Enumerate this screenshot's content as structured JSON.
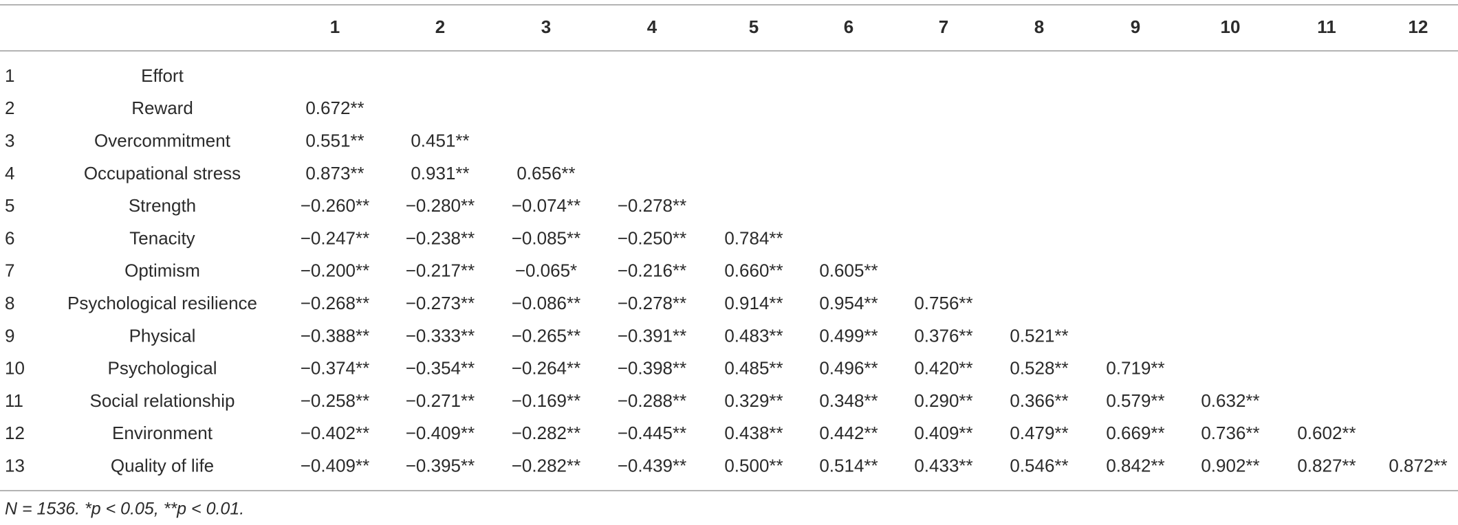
{
  "table": {
    "columns": [
      "1",
      "2",
      "3",
      "4",
      "5",
      "6",
      "7",
      "8",
      "9",
      "10",
      "11",
      "12"
    ],
    "rows": [
      {
        "index": "1",
        "label": "Effort",
        "cells": []
      },
      {
        "index": "2",
        "label": "Reward",
        "cells": [
          "0.672**"
        ]
      },
      {
        "index": "3",
        "label": "Overcommitment",
        "cells": [
          "0.551**",
          "0.451**"
        ]
      },
      {
        "index": "4",
        "label": "Occupational stress",
        "cells": [
          "0.873**",
          "0.931**",
          "0.656**"
        ]
      },
      {
        "index": "5",
        "label": "Strength",
        "cells": [
          "−0.260**",
          "−0.280**",
          "−0.074**",
          "−0.278**"
        ]
      },
      {
        "index": "6",
        "label": "Tenacity",
        "cells": [
          "−0.247**",
          "−0.238**",
          "−0.085**",
          "−0.250**",
          "0.784**"
        ]
      },
      {
        "index": "7",
        "label": "Optimism",
        "cells": [
          "−0.200**",
          "−0.217**",
          "−0.065*",
          "−0.216**",
          "0.660**",
          "0.605**"
        ]
      },
      {
        "index": "8",
        "label": "Psychological resilience",
        "cells": [
          "−0.268**",
          "−0.273**",
          "−0.086**",
          "−0.278**",
          "0.914**",
          "0.954**",
          "0.756**"
        ]
      },
      {
        "index": "9",
        "label": "Physical",
        "cells": [
          "−0.388**",
          "−0.333**",
          "−0.265**",
          "−0.391**",
          "0.483**",
          "0.499**",
          "0.376**",
          "0.521**"
        ]
      },
      {
        "index": "10",
        "label": "Psychological",
        "cells": [
          "−0.374**",
          "−0.354**",
          "−0.264**",
          "−0.398**",
          "0.485**",
          "0.496**",
          "0.420**",
          "0.528**",
          "0.719**"
        ]
      },
      {
        "index": "11",
        "label": "Social relationship",
        "cells": [
          "−0.258**",
          "−0.271**",
          "−0.169**",
          "−0.288**",
          "0.329**",
          "0.348**",
          "0.290**",
          "0.366**",
          "0.579**",
          "0.632**"
        ]
      },
      {
        "index": "12",
        "label": "Environment",
        "cells": [
          "−0.402**",
          "−0.409**",
          "−0.282**",
          "−0.445**",
          "0.438**",
          "0.442**",
          "0.409**",
          "0.479**",
          "0.669**",
          "0.736**",
          "0.602**"
        ]
      },
      {
        "index": "13",
        "label": "Quality of life",
        "cells": [
          "−0.409**",
          "−0.395**",
          "−0.282**",
          "−0.439**",
          "0.500**",
          "0.514**",
          "0.433**",
          "0.546**",
          "0.842**",
          "0.902**",
          "0.827**",
          "0.872**"
        ]
      }
    ],
    "footnote": "N = 1536. *p < 0.05, **p < 0.01."
  }
}
